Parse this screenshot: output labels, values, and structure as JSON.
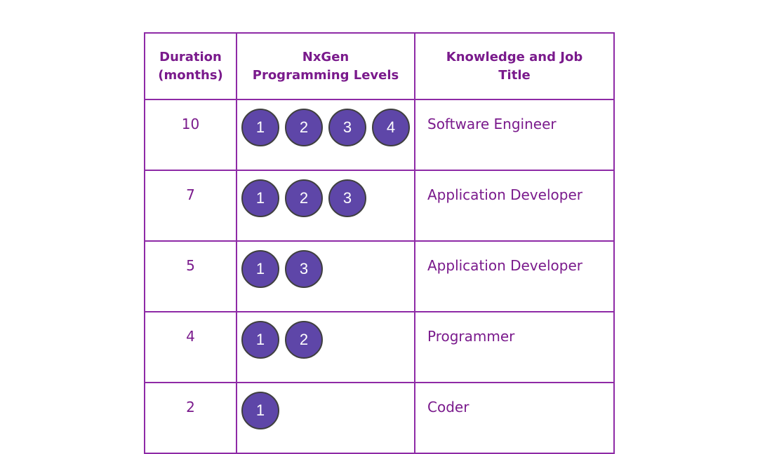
{
  "headers": {
    "duration_line1": "Duration",
    "duration_line2": "(months)",
    "levels_line1": "NxGen",
    "levels_line2": "Programming Levels",
    "title_line1": "Knowledge and Job",
    "title_line2": "Title"
  },
  "rows": [
    {
      "duration": "10",
      "levels": [
        "1",
        "2",
        "3",
        "4"
      ],
      "title": "Software Engineer"
    },
    {
      "duration": "7",
      "levels": [
        "1",
        "2",
        "3"
      ],
      "title": "Application Developer"
    },
    {
      "duration": "5",
      "levels": [
        "1",
        "3"
      ],
      "title": "Application Developer"
    },
    {
      "duration": "4",
      "levels": [
        "1",
        "2"
      ],
      "title": "Programmer"
    },
    {
      "duration": "2",
      "levels": [
        "1"
      ],
      "title": "Coder"
    }
  ],
  "colors": {
    "text": "#7a1a8c",
    "border": "#8e2aa6",
    "circle_fill": "#5e46a8",
    "circle_border": "#3f3f3f"
  }
}
